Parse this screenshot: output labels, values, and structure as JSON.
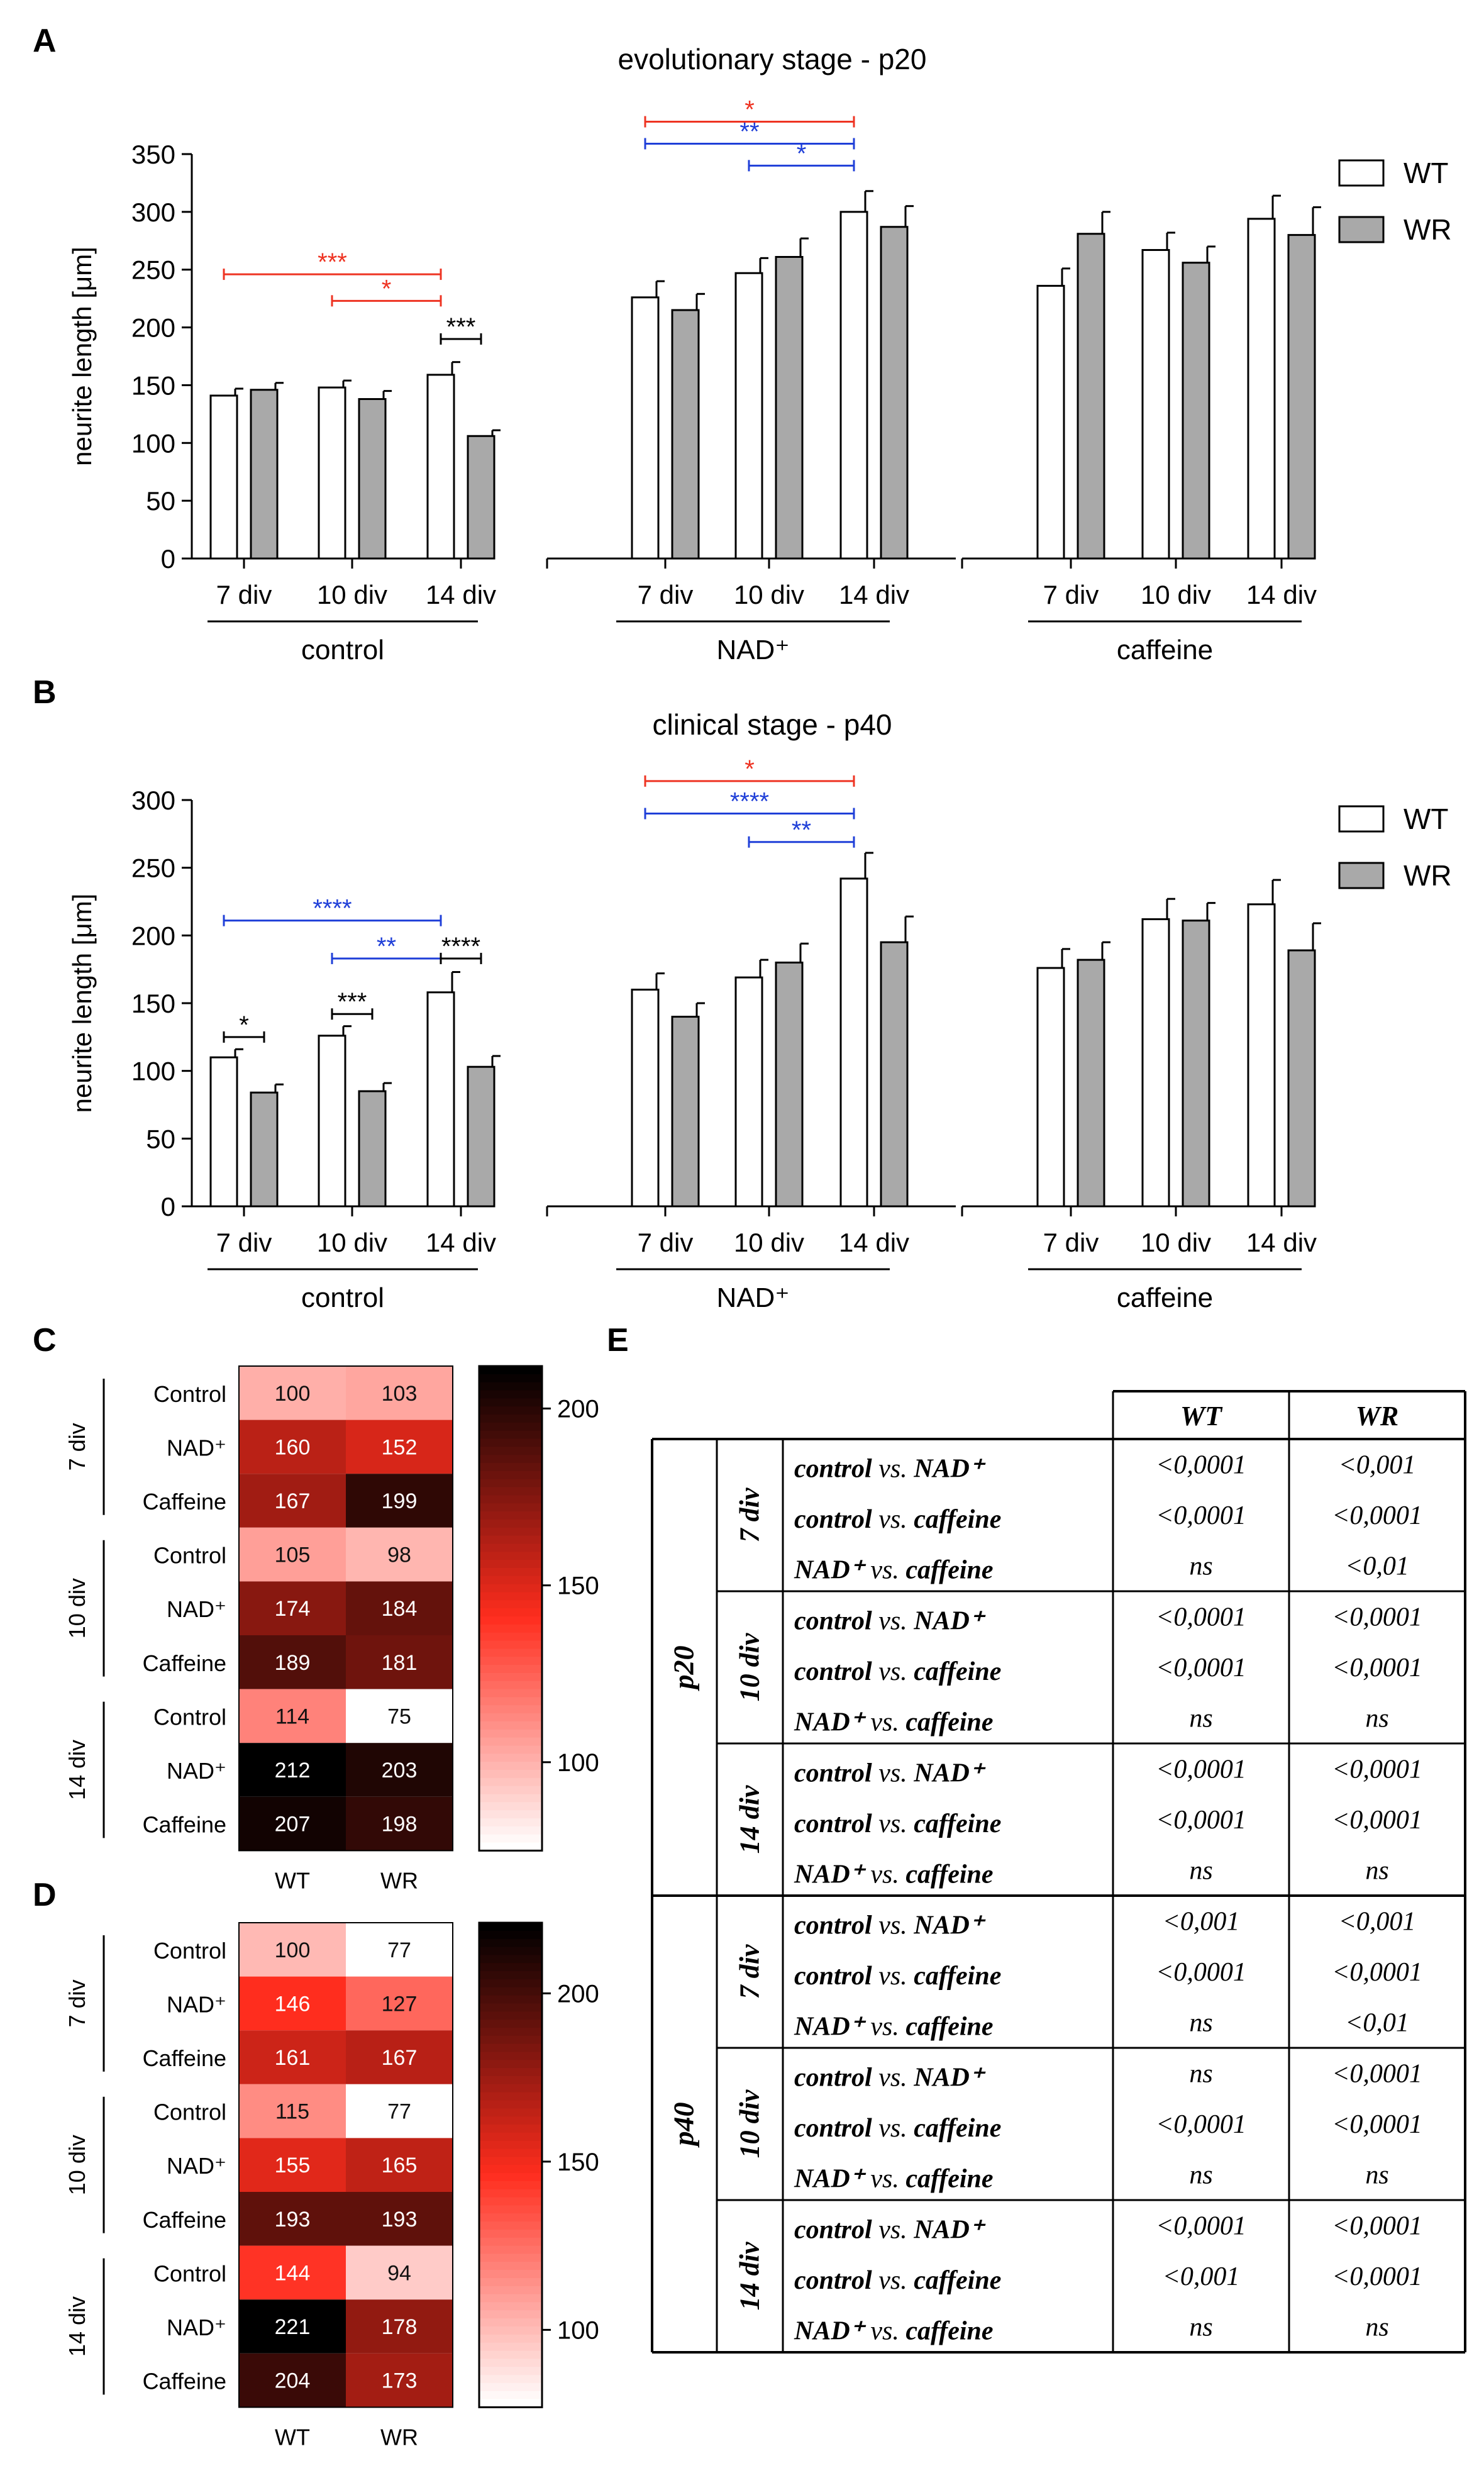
{
  "panel_labels": {
    "a": "A",
    "b": "B",
    "c": "C",
    "d": "D",
    "e": "E"
  },
  "chart_data": [
    {
      "id": "A",
      "type": "bar",
      "title": "evolutionary stage - p20",
      "ylabel": "neurite length [μm]",
      "ylim": [
        0,
        350
      ],
      "yticks": [
        0,
        50,
        100,
        150,
        200,
        250,
        300,
        350
      ],
      "legend": [
        "WT",
        "WR"
      ],
      "legend_position": "top-right",
      "groups": [
        "control",
        "NAD⁺",
        "caffeine"
      ],
      "categories": [
        "7 div",
        "10 div",
        "14 div",
        "7 div",
        "10 div",
        "14 div",
        "7 div",
        "10 div",
        "14 div"
      ],
      "series": [
        {
          "name": "WT",
          "values": [
            141,
            148,
            159,
            226,
            247,
            300,
            236,
            267,
            294
          ],
          "errors": [
            6,
            6,
            11,
            14,
            13,
            18,
            15,
            15,
            20
          ]
        },
        {
          "name": "WR",
          "values": [
            146,
            138,
            106,
            215,
            261,
            287,
            281,
            256,
            280
          ],
          "errors": [
            6,
            7,
            5,
            14,
            16,
            18,
            19,
            14,
            24
          ]
        }
      ],
      "significance": [
        {
          "label": "*",
          "color": "#ee3322",
          "from": 3,
          "to": 5,
          "value": 378
        },
        {
          "label": "**",
          "color": "#1f3fd8",
          "from": 3,
          "to": 5,
          "value": 359
        },
        {
          "label": "*",
          "color": "#1f3fd8",
          "from": 4,
          "to": 5,
          "value": 340
        },
        {
          "label": "***",
          "color": "#ee3322",
          "from": 0,
          "to": 2,
          "value": 246
        },
        {
          "label": "*",
          "color": "#ee3322",
          "from": 1,
          "to": 2,
          "value": 223
        },
        {
          "label": "***",
          "color": "#000000",
          "from": 2,
          "to": 2.5,
          "value": 190
        }
      ]
    },
    {
      "id": "B",
      "type": "bar",
      "title": "clinical stage - p40",
      "ylabel": "neurite length [μm]",
      "ylim": [
        0,
        300
      ],
      "yticks": [
        0,
        50,
        100,
        150,
        200,
        250,
        300
      ],
      "legend": [
        "WT",
        "WR"
      ],
      "legend_position": "top-right",
      "groups": [
        "control",
        "NAD⁺",
        "caffeine"
      ],
      "categories": [
        "7 div",
        "10 div",
        "14 div",
        "7 div",
        "10 div",
        "14 div",
        "7 div",
        "10 div",
        "14 div"
      ],
      "series": [
        {
          "name": "WT",
          "values": [
            110,
            126,
            158,
            160,
            169,
            242,
            176,
            212,
            223
          ],
          "errors": [
            6,
            7,
            15,
            12,
            13,
            19,
            14,
            15,
            18
          ]
        },
        {
          "name": "WR",
          "values": [
            84,
            85,
            103,
            140,
            180,
            195,
            182,
            211,
            189
          ],
          "errors": [
            6,
            6,
            8,
            10,
            14,
            19,
            13,
            13,
            20
          ]
        }
      ],
      "significance": [
        {
          "label": "*",
          "color": "#ee3322",
          "from": 3,
          "to": 5,
          "value": 314
        },
        {
          "label": "****",
          "color": "#1f3fd8",
          "from": 3,
          "to": 5,
          "value": 290
        },
        {
          "label": "**",
          "color": "#1f3fd8",
          "from": 4,
          "to": 5,
          "value": 269
        },
        {
          "label": "****",
          "color": "#1f3fd8",
          "from": 0,
          "to": 2,
          "value": 211
        },
        {
          "label": "**",
          "color": "#1f3fd8",
          "from": 1,
          "to": 2,
          "value": 183
        },
        {
          "label": "****",
          "color": "#000000",
          "from": 2,
          "to": 2.5,
          "value": 183
        },
        {
          "label": "***",
          "color": "#000000",
          "from": 1,
          "to": 1.5,
          "value": 142
        },
        {
          "label": "*",
          "color": "#000000",
          "from": 0,
          "to": 0.5,
          "value": 125
        }
      ]
    },
    {
      "id": "C",
      "type": "heatmap",
      "columns": [
        "WT",
        "WR"
      ],
      "row_groups": [
        "7 div",
        "10 div",
        "14 div"
      ],
      "rows": [
        "Control",
        "NAD⁺",
        "Caffeine",
        "Control",
        "NAD⁺",
        "Caffeine",
        "Control",
        "NAD⁺",
        "Caffeine"
      ],
      "values": [
        [
          100,
          103
        ],
        [
          160,
          152
        ],
        [
          167,
          199
        ],
        [
          105,
          98
        ],
        [
          174,
          184
        ],
        [
          189,
          181
        ],
        [
          114,
          75
        ],
        [
          212,
          203
        ],
        [
          207,
          198
        ]
      ],
      "colorbar": {
        "min": 75,
        "max": 212,
        "ticks": [
          100,
          150,
          200
        ]
      }
    },
    {
      "id": "D",
      "type": "heatmap",
      "columns": [
        "WT",
        "WR"
      ],
      "row_groups": [
        "7 div",
        "10 div",
        "14 div"
      ],
      "rows": [
        "Control",
        "NAD⁺",
        "Caffeine",
        "Control",
        "NAD⁺",
        "Caffeine",
        "Control",
        "NAD⁺",
        "Caffeine"
      ],
      "values": [
        [
          100,
          77
        ],
        [
          146,
          127
        ],
        [
          161,
          167
        ],
        [
          115,
          77
        ],
        [
          155,
          165
        ],
        [
          193,
          193
        ],
        [
          144,
          94
        ],
        [
          221,
          178
        ],
        [
          204,
          173
        ]
      ],
      "colorbar": {
        "min": 77,
        "max": 221,
        "ticks": [
          100,
          150,
          200
        ]
      }
    },
    {
      "id": "E",
      "type": "table",
      "headers": [
        "WT",
        "WR"
      ],
      "stages": [
        "p20",
        "p40"
      ],
      "divs": [
        "7 div",
        "10 div",
        "14 div"
      ],
      "comparison_tokens": [
        [
          "control",
          "vs.",
          "NAD⁺"
        ],
        [
          "control",
          "vs.",
          "caffeine"
        ],
        [
          "NAD⁺",
          "vs.",
          "caffeine"
        ]
      ],
      "rows": [
        [
          "<0,0001",
          "<0,001"
        ],
        [
          "<0,0001",
          "<0,0001"
        ],
        [
          "ns",
          "<0,01"
        ],
        [
          "<0,0001",
          "<0,0001"
        ],
        [
          "<0,0001",
          "<0,0001"
        ],
        [
          "ns",
          "ns"
        ],
        [
          "<0,0001",
          "<0,0001"
        ],
        [
          "<0,0001",
          "<0,0001"
        ],
        [
          "ns",
          "ns"
        ],
        [
          "<0,001",
          "<0,001"
        ],
        [
          "<0,0001",
          "<0,0001"
        ],
        [
          "ns",
          "<0,01"
        ],
        [
          "ns",
          "<0,0001"
        ],
        [
          "<0,0001",
          "<0,0001"
        ],
        [
          "ns",
          "ns"
        ],
        [
          "<0,0001",
          "<0,0001"
        ],
        [
          "<0,001",
          "<0,0001"
        ],
        [
          "ns",
          "ns"
        ]
      ]
    }
  ],
  "colors": {
    "wt_fill": "#ffffff",
    "wr_fill": "#a9a9a9",
    "red": "#ee3322",
    "blue": "#1f3fd8",
    "black": "#000000"
  }
}
